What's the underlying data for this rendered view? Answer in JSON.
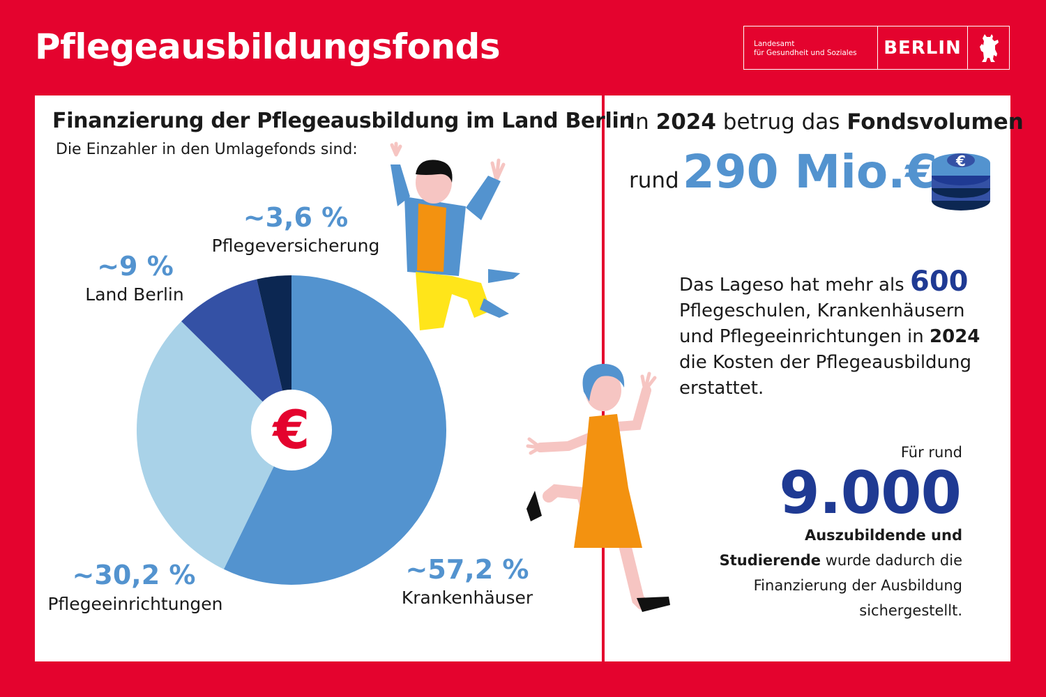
{
  "header": {
    "title": "Pflegeausbildungsfonds",
    "logo_agency_line1": "Landesamt",
    "logo_agency_line2": "für Gesundheit und Soziales",
    "logo_city": "BERLIN"
  },
  "chart_data": {
    "type": "pie",
    "title": "Finanzierung der Pflegeausbildung im Land Berlin",
    "subtitle": "Die Einzahler in den Umlagefonds sind:",
    "center_symbol": "€",
    "slices": [
      {
        "label": "Krankenhäuser",
        "value": 57.2,
        "value_label": "~57,2 %",
        "color": "#5393cf"
      },
      {
        "label": "Pflegeeinrichtungen",
        "value": 30.2,
        "value_label": "~30,2 %",
        "color": "#a9d2e8"
      },
      {
        "label": "Land Berlin",
        "value": 9,
        "value_label": "~9 %",
        "color": "#3451a5"
      },
      {
        "label": "Pflegeversicherung",
        "value": 3.6,
        "value_label": "~3,6 %",
        "color": "#0c2752"
      }
    ]
  },
  "fund": {
    "in": "In",
    "year": "2024",
    "betrug": "betrug das",
    "fondsvolumen": "Fondsvolumen",
    "rund": "rund",
    "amount": "290 Mio.€",
    "period": "."
  },
  "lageso": {
    "part1": "Das Lageso hat mehr als",
    "count": "600",
    "line2": "Pflegeschulen, Krankenhäusern",
    "line3a": "und Pflegeeinrichtungen in",
    "year": "2024",
    "line4": "die Kosten der Pflegeausbildung",
    "line5": "erstattet."
  },
  "trainees": {
    "intro": "Für rund",
    "count": "9.000",
    "line1": "Auszubildende und",
    "line2a": "Studierende",
    "line2b": "wurde dadurch die",
    "line3": "Finanzierung der Ausbildung",
    "line4": "sichergestellt."
  }
}
